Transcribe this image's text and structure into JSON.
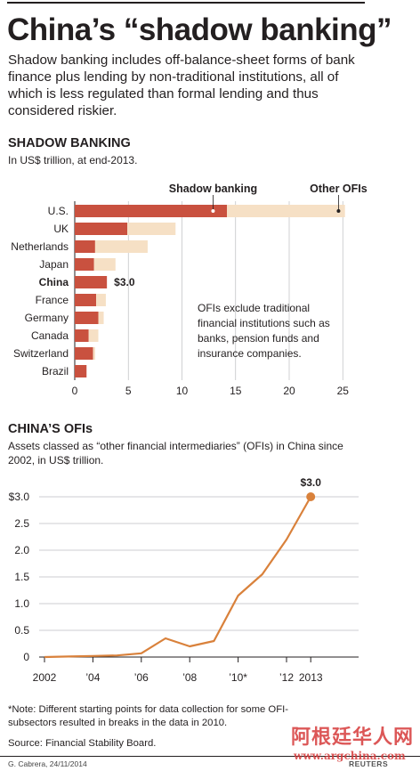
{
  "header": {
    "title": "China’s “shadow banking”",
    "subtitle": "Shadow banking includes off-balance-sheet forms of bank finance plus lending by non-traditional institutions, all of which is less regulated than formal lending and thus considered riskier."
  },
  "section1": {
    "heading": "SHADOW BANKING",
    "subheading": "In US$ trillion, at end-2013.",
    "note": "OFIs exclude traditional financial institutions such as banks, pension funds and insurance companies."
  },
  "section2": {
    "heading": "CHINA’S OFIs",
    "subheading": "Assets classed as “other financial intermediaries” (OFIs) in China since 2002, in US$ trillion."
  },
  "footer": {
    "note": "*Note: Different starting points for data collection for some OFI-subsectors resulted in breaks in the data in 2010.",
    "source": "Source: Financial Stability Board.",
    "credit": "G. Cabrera, 24/11/2014",
    "agency": "REUTERS",
    "watermark": "阿根廷华人网",
    "watermark_url": "www.argchina.com"
  },
  "colors": {
    "shadow": "#c9513f",
    "other": "#f6e0c5",
    "line": "#d9813b",
    "axis": "#231f20"
  },
  "chart_data": [
    {
      "type": "bar",
      "orientation": "horizontal",
      "stacked": true,
      "categories": [
        "U.S.",
        "UK",
        "Netherlands",
        "Japan",
        "China",
        "France",
        "Germany",
        "Canada",
        "Switzerland",
        "Brazil"
      ],
      "highlight": "China",
      "series": [
        {
          "name": "Shadow banking",
          "values": [
            14.2,
            4.9,
            1.9,
            1.8,
            3.0,
            2.0,
            2.2,
            1.3,
            1.7,
            1.1
          ]
        },
        {
          "name": "Other OFIs",
          "values": [
            11.0,
            4.5,
            4.9,
            2.0,
            0.0,
            0.9,
            0.5,
            0.9,
            0.2,
            0.0
          ]
        }
      ],
      "data_labels": {
        "China": "$3.0"
      },
      "xlim": [
        0,
        26
      ],
      "xticks": [
        0,
        5,
        10,
        15,
        20,
        25
      ]
    },
    {
      "type": "line",
      "x": [
        2002,
        2003,
        2004,
        2005,
        2006,
        2007,
        2008,
        2009,
        2010,
        2011,
        2012,
        2013
      ],
      "values": [
        0.0,
        0.01,
        0.02,
        0.03,
        0.07,
        0.35,
        0.2,
        0.3,
        1.15,
        1.55,
        2.2,
        3.0
      ],
      "end_label": "$3.0",
      "ylim": [
        0,
        3.2
      ],
      "yticks": [
        0,
        0.5,
        1.0,
        1.5,
        2.0,
        2.5,
        3.0
      ],
      "ytick_labels": [
        "0",
        "0.5",
        "1.0",
        "1.5",
        "2.0",
        "2.5",
        "$3.0"
      ],
      "xtick_labels": [
        "2002",
        "’04",
        "’06",
        "’08",
        "’10*",
        "’12",
        "2013"
      ],
      "xtick_positions": [
        2002,
        2004,
        2006,
        2008,
        2010,
        2012,
        2013
      ]
    }
  ]
}
